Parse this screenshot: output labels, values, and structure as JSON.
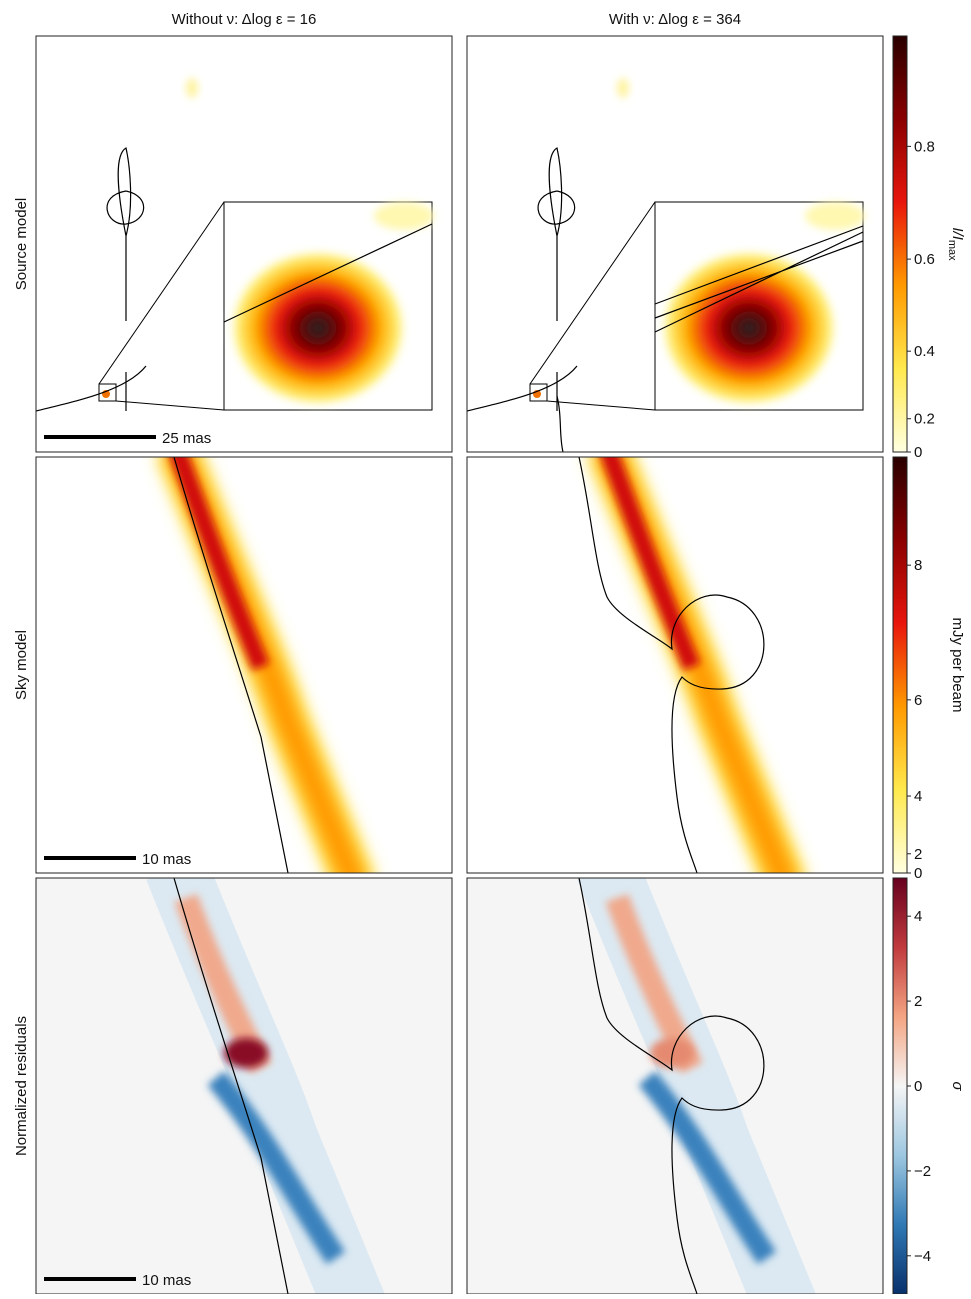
{
  "column_titles": [
    "Without ν: Δlog ε = 16",
    "With ν: Δlog ε = 364"
  ],
  "rows": [
    {
      "label": "Source model",
      "scale_bar": "25 mas",
      "colorbar": {
        "label": "I/I",
        "label_sub": "max",
        "ylim": [
          0,
          0.97
        ],
        "power": 1.6,
        "yticks": [
          0,
          0.2,
          0.4,
          0.6,
          0.8
        ],
        "colors": [
          "#ffffe0",
          "#ffe94d",
          "#ff9a00",
          "#e8160c",
          "#8a0000",
          "#2a0000"
        ]
      }
    },
    {
      "label": "Sky model",
      "scale_bar": "10 mas",
      "colorbar": {
        "label": "mJy per beam",
        "ylim": [
          0,
          9.3
        ],
        "power": 2,
        "yticks": [
          0,
          2,
          4,
          6,
          8
        ],
        "colors": [
          "#ffffe0",
          "#ffe94d",
          "#ff9a00",
          "#e8160c",
          "#8a0000",
          "#2a0000"
        ]
      }
    },
    {
      "label": "Normalized residuals",
      "scale_bar": "10 mas",
      "colorbar": {
        "label": "σ",
        "ylim": [
          -4.9,
          4.9
        ],
        "power": 1,
        "yticks": [
          {
            "value": -4,
            "label": "−4"
          },
          {
            "value": -2,
            "label": "−2"
          },
          0,
          2,
          4
        ],
        "colors": [
          "#08306b",
          "#2f79b5",
          "#9dc7e0",
          "#f5f5f5",
          "#f4a582",
          "#c13a3e",
          "#67001f"
        ]
      }
    }
  ]
}
